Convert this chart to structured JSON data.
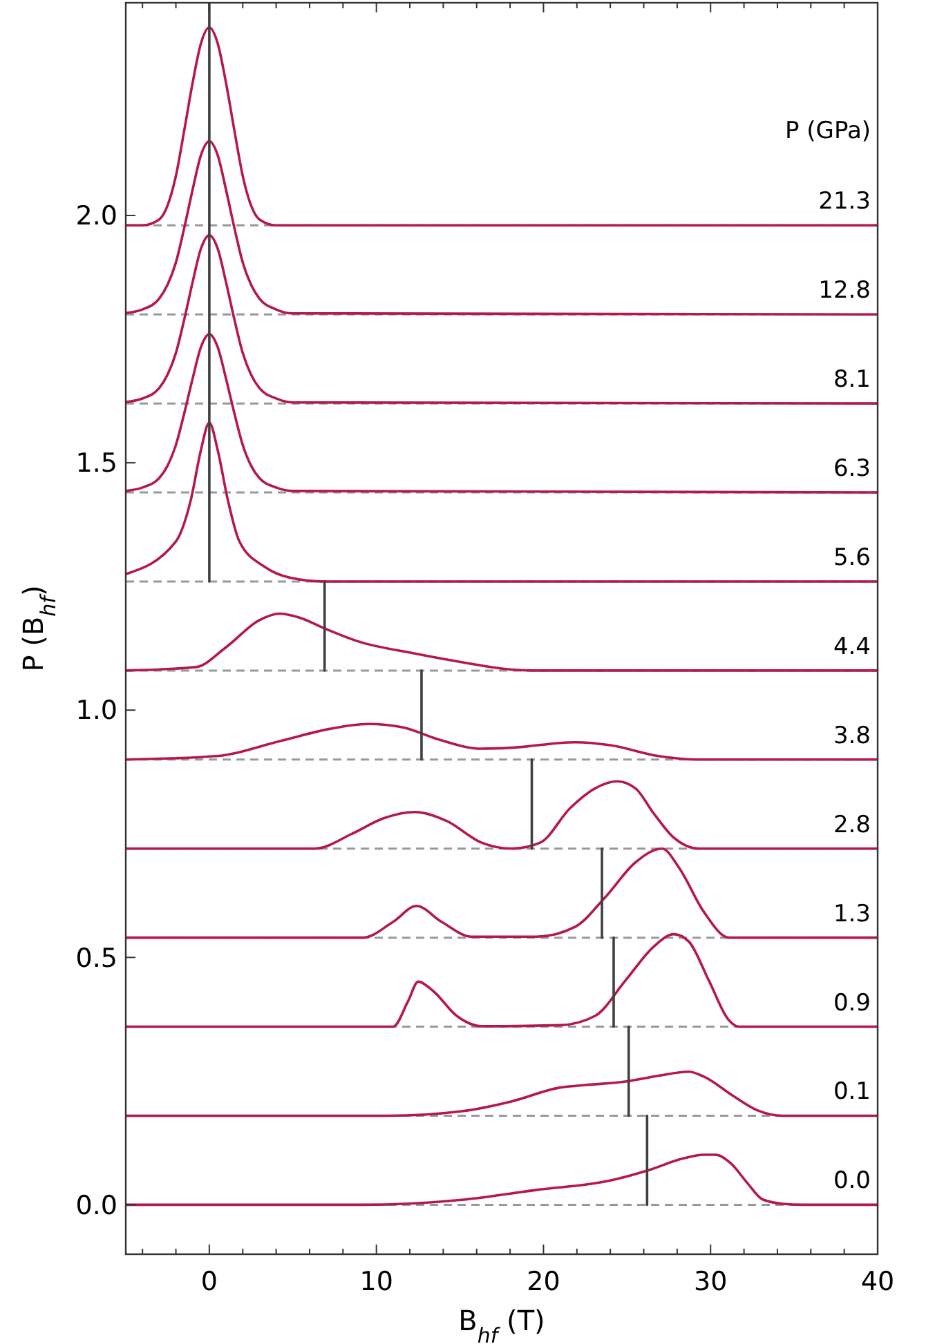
{
  "chart_data": {
    "type": "line",
    "xlabel": "B$_{hf}$ (T)",
    "ylabel": "P (B$_{hf}$)",
    "xlim": [
      -5,
      40
    ],
    "ylim": [
      -0.1,
      2.43
    ],
    "xticks": [
      {
        "value": -4,
        "label": null
      },
      {
        "value": -2,
        "label": null
      },
      0,
      {
        "value": 2,
        "label": null
      },
      {
        "value": 4,
        "label": null
      },
      {
        "value": 6,
        "label": null
      },
      {
        "value": 8,
        "label": null
      },
      10,
      {
        "value": 12,
        "label": null
      },
      {
        "value": 14,
        "label": null
      },
      {
        "value": 16,
        "label": null
      },
      {
        "value": 18,
        "label": null
      },
      20,
      {
        "value": 22,
        "label": null
      },
      {
        "value": 24,
        "label": null
      },
      {
        "value": 26,
        "label": null
      },
      {
        "value": 28,
        "label": null
      },
      30,
      {
        "value": 32,
        "label": null
      },
      {
        "value": 34,
        "label": null
      },
      {
        "value": 36,
        "label": null
      },
      {
        "value": 38,
        "label": null
      },
      40
    ],
    "yticks": [
      {
        "value": 0,
        "label": "0.0"
      },
      {
        "value": 0.5,
        "label": "0.5"
      },
      {
        "value": 1,
        "label": "1.0"
      },
      {
        "value": 1.5,
        "label": "1.5"
      },
      {
        "value": 2,
        "label": "2.0"
      }
    ],
    "ref_lines": [
      {
        "axis": "y",
        "value": 0,
        "color": "#999999",
        "line_style": "dashed"
      },
      {
        "axis": "y",
        "value": 0.18,
        "color": "#999999",
        "line_style": "dashed"
      },
      {
        "axis": "y",
        "value": 0.36,
        "color": "#999999",
        "line_style": "dashed"
      },
      {
        "axis": "y",
        "value": 0.54,
        "color": "#999999",
        "line_style": "dashed"
      },
      {
        "axis": "y",
        "value": 0.72,
        "color": "#999999",
        "line_style": "dashed"
      },
      {
        "axis": "y",
        "value": 0.9,
        "color": "#999999",
        "line_style": "dashed"
      },
      {
        "axis": "y",
        "value": 1.08,
        "color": "#999999",
        "line_style": "dashed"
      },
      {
        "axis": "y",
        "value": 1.26,
        "color": "#999999",
        "line_style": "dashed"
      },
      {
        "axis": "y",
        "value": 1.44,
        "color": "#999999",
        "line_style": "dashed"
      },
      {
        "axis": "y",
        "value": 1.62,
        "color": "#999999",
        "line_style": "dashed"
      },
      {
        "axis": "y",
        "value": 1.8,
        "color": "#999999",
        "line_style": "dashed"
      },
      {
        "axis": "y",
        "value": 1.98,
        "color": "#999999",
        "line_style": "dashed"
      }
    ],
    "series": [
      {
        "color": "#b5174f",
        "x": [
          -5,
          9.2,
          15.1,
          19.6,
          24,
          26.3,
          28.4,
          29.6,
          30.3,
          31.2,
          32.2,
          33.1,
          34.3,
          35.5,
          40
        ],
        "values": [
          0,
          0,
          0.01,
          0.03,
          0.049,
          0.07,
          0.094,
          0.101,
          0.101,
          0.084,
          0.044,
          0.011,
          0.002,
          0,
          0
        ]
      },
      {
        "color": "#b5174f",
        "x": [
          -5,
          10.7,
          15.1,
          18.1,
          21,
          22.5,
          24.9,
          26.9,
          28.7,
          29.6,
          31.4,
          32.8,
          34.3,
          40
        ],
        "values": [
          0.18,
          0.18,
          0.189,
          0.209,
          0.237,
          0.242,
          0.249,
          0.261,
          0.269,
          0.259,
          0.219,
          0.191,
          0.18,
          0.18
        ]
      },
      {
        "color": "#b5174f",
        "x": [
          -5,
          11,
          11.9,
          12.5,
          13.4,
          14.8,
          16.3,
          21,
          23.1,
          24.9,
          26.6,
          27.8,
          28.7,
          29.9,
          31.1,
          31.7,
          40
        ],
        "values": [
          0.36,
          0.36,
          0.412,
          0.451,
          0.432,
          0.382,
          0.361,
          0.363,
          0.382,
          0.453,
          0.522,
          0.547,
          0.532,
          0.453,
          0.373,
          0.36,
          0.36
        ]
      },
      {
        "color": "#b5174f",
        "x": [
          -5,
          9.2,
          11,
          12.4,
          13.9,
          15.7,
          19.6,
          21.9,
          23.7,
          25.5,
          27.1,
          28.1,
          29.6,
          31.1,
          40
        ],
        "values": [
          0.54,
          0.54,
          0.572,
          0.604,
          0.572,
          0.542,
          0.542,
          0.562,
          0.622,
          0.692,
          0.72,
          0.682,
          0.592,
          0.54,
          0.54
        ]
      },
      {
        "color": "#b5174f",
        "x": [
          -5,
          6.3,
          8.6,
          10.4,
          12.3,
          14.2,
          16.3,
          18.1,
          19.8,
          21.6,
          23.1,
          24.4,
          25.5,
          26.6,
          27.8,
          29.3,
          40
        ],
        "values": [
          0.72,
          0.72,
          0.751,
          0.781,
          0.794,
          0.776,
          0.732,
          0.72,
          0.732,
          0.802,
          0.842,
          0.856,
          0.842,
          0.791,
          0.742,
          0.72,
          0.72
        ]
      },
      {
        "color": "#b5174f",
        "x": [
          -5,
          0.4,
          4.2,
          7.2,
          9.5,
          11.6,
          13.6,
          16.3,
          18.1,
          21.9,
          24,
          26.9,
          29.3,
          40
        ],
        "values": [
          0.9,
          0.907,
          0.937,
          0.962,
          0.972,
          0.965,
          0.942,
          0.922,
          0.924,
          0.935,
          0.929,
          0.907,
          0.9,
          0.9
        ]
      },
      {
        "color": "#b5174f",
        "x": [
          -5,
          -0.8,
          1,
          3,
          4.2,
          5.4,
          6.9,
          8.9,
          12.2,
          15.1,
          18.1,
          19.6,
          40
        ],
        "values": [
          1.08,
          1.087,
          1.127,
          1.182,
          1.195,
          1.187,
          1.165,
          1.139,
          1.115,
          1.097,
          1.082,
          1.08,
          1.08
        ]
      },
      {
        "color": "#b5174f",
        "x": [
          -5,
          -2,
          -1.1,
          -0.5,
          0,
          0.5,
          1.1,
          1.8,
          3.3,
          4.8,
          6.9,
          40
        ],
        "values": [
          1.275,
          1.341,
          1.426,
          1.526,
          1.581,
          1.526,
          1.426,
          1.341,
          1.29,
          1.268,
          1.26,
          1.26
        ]
      },
      {
        "color": "#b5174f",
        "x": [
          -5,
          -4,
          -3,
          -2.5,
          -2,
          -1.5,
          -1,
          -0.5,
          0,
          0.5,
          1,
          1.5,
          2,
          2.5,
          3,
          4,
          5,
          40
        ],
        "values": [
          1.443,
          1.45,
          1.469,
          1.494,
          1.536,
          1.6,
          1.67,
          1.734,
          1.76,
          1.734,
          1.67,
          1.6,
          1.536,
          1.494,
          1.469,
          1.45,
          1.443,
          1.44
        ]
      },
      {
        "color": "#b5174f",
        "x": [
          -5,
          -4,
          -3,
          -2.5,
          -2,
          -1.5,
          -1,
          -0.5,
          0,
          0.5,
          1,
          1.5,
          2,
          2.5,
          3,
          4,
          5,
          40
        ],
        "values": [
          1.623,
          1.63,
          1.651,
          1.678,
          1.722,
          1.79,
          1.865,
          1.933,
          1.96,
          1.933,
          1.865,
          1.79,
          1.722,
          1.678,
          1.651,
          1.63,
          1.622,
          1.62
        ]
      },
      {
        "color": "#b5174f",
        "x": [
          -5,
          -4,
          -3,
          -2.5,
          -2,
          -1.5,
          -1,
          -0.5,
          0,
          0.5,
          1,
          1.5,
          2,
          2.5,
          3,
          4,
          5,
          40
        ],
        "values": [
          1.803,
          1.81,
          1.832,
          1.86,
          1.905,
          1.975,
          2.052,
          2.122,
          2.15,
          2.122,
          2.052,
          1.975,
          1.905,
          1.86,
          1.832,
          1.81,
          1.802,
          1.8
        ]
      },
      {
        "color": "#b5174f",
        "x": [
          -5,
          -4,
          -3,
          -2.5,
          -2,
          -1.5,
          -1,
          -0.5,
          0,
          0.5,
          1,
          1.5,
          2,
          2.5,
          3,
          4,
          40
        ],
        "values": [
          1.98,
          1.98,
          1.992,
          2.02,
          2.08,
          2.172,
          2.268,
          2.348,
          2.38,
          2.348,
          2.268,
          2.172,
          2.08,
          2.02,
          1.992,
          1.98,
          1.98
        ]
      },
      {
        "color": "#404040",
        "x": [
          26.2,
          26.2
        ],
        "values": [
          0,
          0.18
        ]
      },
      {
        "color": "#404040",
        "x": [
          25.1,
          25.1
        ],
        "values": [
          0.18,
          0.36
        ]
      },
      {
        "color": "#404040",
        "x": [
          24.2,
          24.2
        ],
        "values": [
          0.36,
          0.54
        ]
      },
      {
        "color": "#404040",
        "x": [
          23.5,
          23.5
        ],
        "values": [
          0.54,
          0.72
        ]
      },
      {
        "color": "#404040",
        "x": [
          19.3,
          19.3
        ],
        "values": [
          0.72,
          0.9
        ]
      },
      {
        "color": "#404040",
        "x": [
          12.7,
          12.7
        ],
        "values": [
          0.9,
          1.08
        ]
      },
      {
        "color": "#404040",
        "x": [
          6.9,
          6.9
        ],
        "values": [
          1.08,
          1.26
        ]
      },
      {
        "color": "#404040",
        "x": [
          0,
          0
        ],
        "values": [
          1.26,
          2.43
        ]
      }
    ],
    "annotations": [
      "P (GPa)",
      "21.3",
      "12.8",
      "8.1",
      "6.3",
      "5.6",
      "4.4",
      "3.8",
      "2.8",
      "1.3",
      "0.9",
      "0.1",
      "0.0"
    ]
  }
}
